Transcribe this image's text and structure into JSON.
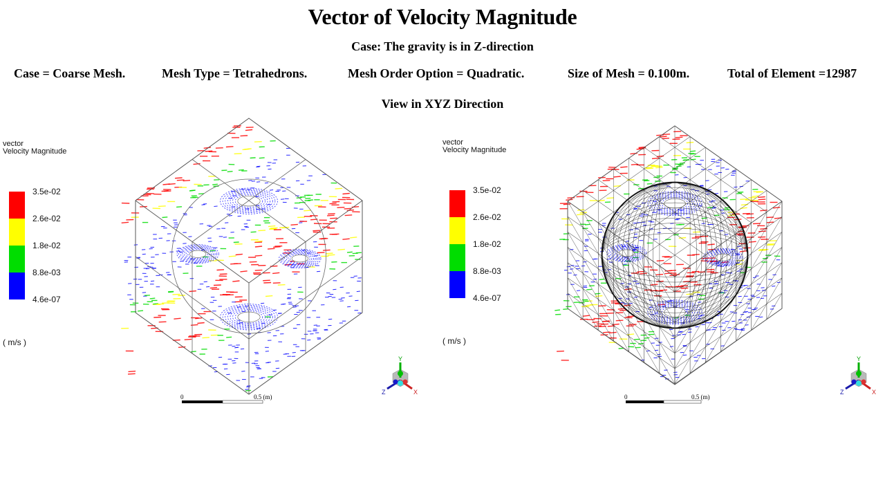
{
  "header": {
    "title": "Vector of Velocity Magnitude",
    "subtitle": "Case: The gravity is in  Z-direction",
    "specs": [
      "Case = Coarse Mesh.",
      "Mesh Type = Tetrahedrons.",
      "Mesh Order Option  = Quadratic.",
      "Size of Mesh = 0.100m.",
      "Total of Element =12987"
    ],
    "view": "View in XYZ  Direction"
  },
  "panels": [
    {
      "id": "left",
      "legend": {
        "line1": "vector",
        "line2": "Velocity Magnitude",
        "ticks": [
          "3.5e-02",
          "2.6e-02",
          "1.8e-02",
          "8.8e-03",
          "4.6e-07"
        ],
        "colors": [
          "#ff0000",
          "#ffff00",
          "#00dd00",
          "#0000ff"
        ],
        "unit": "( m/s )"
      },
      "mesh_shown": false,
      "scale_bar": {
        "start": "0",
        "end": "0.5 (m)"
      },
      "triad": {
        "x": "X",
        "y": "Y",
        "z": "Z"
      }
    },
    {
      "id": "right",
      "legend": {
        "line1": "vector",
        "line2": "Velocity Magnitude",
        "ticks": [
          "3.5e-02",
          "2.6e-02",
          "1.8e-02",
          "8.8e-03",
          "4.6e-07"
        ],
        "colors": [
          "#ff0000",
          "#ffff00",
          "#00dd00",
          "#0000ff"
        ],
        "unit": "( m/s )"
      },
      "mesh_shown": true,
      "scale_bar": {
        "start": "0",
        "end": "0.5 (m)"
      },
      "triad": {
        "x": "X",
        "y": "Y",
        "z": "Z"
      }
    }
  ]
}
